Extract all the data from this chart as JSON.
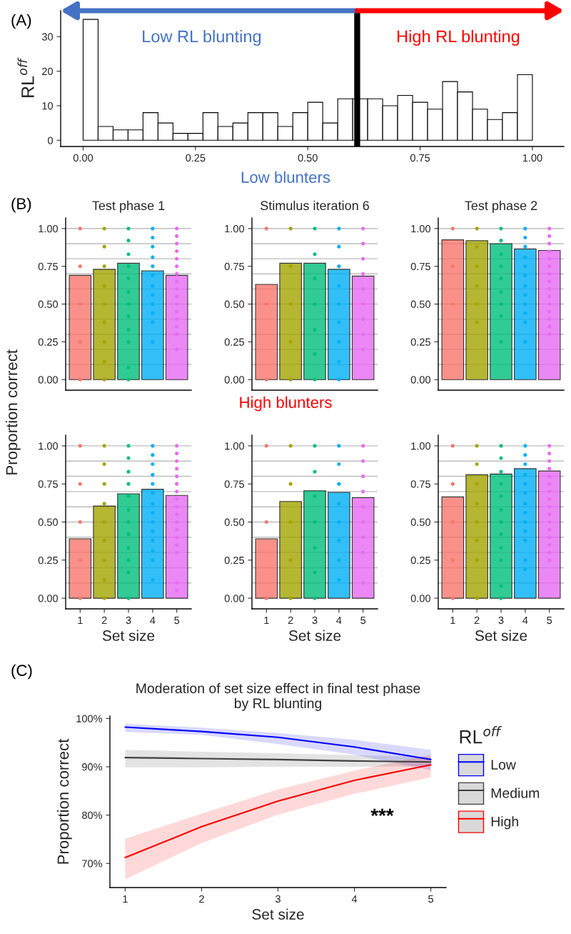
{
  "chart_data": [
    {
      "type": "histogram",
      "ylabel": "RL$^{off}$",
      "annotations": [
        "(A)",
        "Low RL blunting",
        "High RL blunting"
      ],
      "bins": [
        0,
        0.0333,
        0.0667,
        0.1,
        0.1333,
        0.1667,
        0.2,
        0.2333,
        0.2667,
        0.3,
        0.3333,
        0.3667,
        0.4,
        0.4333,
        0.4667,
        0.5,
        0.5333,
        0.5667,
        0.6,
        0.6333,
        0.6667,
        0.7,
        0.7333,
        0.7667,
        0.8,
        0.8333,
        0.8667,
        0.9,
        0.9333,
        0.9667,
        1
      ],
      "values": [
        35,
        4,
        3,
        3,
        8,
        5,
        2,
        2,
        8,
        4,
        5,
        8,
        8,
        4,
        8,
        11,
        5,
        12,
        12,
        12,
        10,
        13,
        11,
        9,
        17,
        14,
        9,
        6,
        8,
        19
      ],
      "color": "#ffffff",
      "xlim": [
        -0.05,
        1.07
      ],
      "xticks": [
        {
          "value": 0,
          "label": "0.00"
        },
        {
          "value": 0.25,
          "label": "0.25"
        },
        {
          "value": 0.5,
          "label": "0.50"
        },
        {
          "value": 0.75,
          "label": "0.75"
        },
        {
          "value": 1,
          "label": "1.00"
        }
      ],
      "ylim": [
        -1.8,
        37.5
      ],
      "yticks": [
        0,
        10,
        20,
        30
      ],
      "ref_lines": [
        {
          "axis": "x",
          "value": 0.61,
          "color": "#000000"
        }
      ]
    },
    {
      "type": "bar",
      "title": "Test phase 1",
      "ylabel": "Proportion correct",
      "annotations": [
        "(B)"
      ],
      "tick_labels": "y",
      "marker": "circle",
      "categories": [
        "1",
        "2",
        "3",
        "4",
        "5"
      ],
      "values": [
        0.69,
        0.73,
        0.77,
        0.72,
        0.69
      ],
      "colors": [
        "#F8766D",
        "#A3A500",
        "#00BF7D",
        "#00B0F6",
        "#E76BF3"
      ],
      "ylim": [
        -0.07,
        1.07
      ],
      "yticks": [
        {
          "value": 0,
          "label": "0.00"
        },
        {
          "value": 0.25,
          "label": "0.25"
        },
        {
          "value": 0.5,
          "label": "0.50"
        },
        {
          "value": 0.75,
          "label": "0.75"
        },
        {
          "value": 1,
          "label": "1.00"
        }
      ],
      "ref_lines": [
        {
          "axis": "y",
          "value": 0.1,
          "color": "#BEBEBE"
        },
        {
          "axis": "y",
          "value": 0.2,
          "color": "#BEBEBE"
        },
        {
          "axis": "y",
          "value": 0.3,
          "color": "#BEBEBE"
        },
        {
          "axis": "y",
          "value": 0.4,
          "color": "#BEBEBE"
        },
        {
          "axis": "y",
          "value": 0.5,
          "color": "#BEBEBE"
        },
        {
          "axis": "y",
          "value": 0.6,
          "color": "#BEBEBE"
        },
        {
          "axis": "y",
          "value": 0.7,
          "color": "#BEBEBE"
        },
        {
          "axis": "y",
          "value": 0.8,
          "color": "#BEBEBE"
        },
        {
          "axis": "y",
          "value": 0.9,
          "color": "#BEBEBE"
        },
        {
          "axis": "y",
          "value": 1,
          "color": "#BEBEBE"
        }
      ],
      "series": [
        {
          "type": "scatter",
          "color": "#F8766D",
          "x": [
            "1",
            "1",
            "1",
            "1",
            "1"
          ],
          "values": [
            1,
            0.75,
            0.5,
            0.25,
            0
          ]
        },
        {
          "type": "scatter",
          "color": "#A3A500",
          "x": [
            "2",
            "2",
            "2",
            "2",
            "2",
            "2",
            "2",
            "2",
            "2"
          ],
          "values": [
            1,
            0.88,
            0.75,
            0.62,
            0.5,
            0.38,
            0.25,
            0.12,
            0
          ]
        },
        {
          "type": "scatter",
          "color": "#00BF7D",
          "x": [
            "3",
            "3",
            "3",
            "3",
            "3",
            "3",
            "3",
            "3",
            "3",
            "3",
            "3",
            "3"
          ],
          "values": [
            1,
            0.92,
            0.83,
            0.75,
            0.67,
            0.58,
            0.5,
            0.42,
            0.33,
            0.25,
            0.08,
            0
          ]
        },
        {
          "type": "scatter",
          "color": "#00B0F6",
          "x": [
            "4",
            "4",
            "4",
            "4",
            "4",
            "4",
            "4",
            "4",
            "4",
            "4",
            "4",
            "4"
          ],
          "values": [
            1,
            0.94,
            0.88,
            0.81,
            0.75,
            0.69,
            0.62,
            0.56,
            0.5,
            0.44,
            0.38,
            0.25
          ]
        },
        {
          "type": "scatter",
          "color": "#E76BF3",
          "x": [
            "5",
            "5",
            "5",
            "5",
            "5",
            "5",
            "5",
            "5",
            "5",
            "5",
            "5",
            "5",
            "5",
            "5",
            "5",
            "5"
          ],
          "values": [
            1,
            0.95,
            0.9,
            0.85,
            0.8,
            0.75,
            0.7,
            0.65,
            0.6,
            0.55,
            0.5,
            0.45,
            0.4,
            0.35,
            0.3,
            0.2
          ]
        }
      ]
    },
    {
      "type": "bar",
      "title": "Stimulus iteration 6",
      "annotations": [
        "Low blunters"
      ],
      "tick_labels": "y",
      "marker": "circle",
      "categories": [
        "1",
        "2",
        "3",
        "4",
        "5"
      ],
      "values": [
        0.63,
        0.77,
        0.77,
        0.73,
        0.685
      ],
      "colors": [
        "#F8766D",
        "#A3A500",
        "#00BF7D",
        "#00B0F6",
        "#E76BF3"
      ],
      "ylim": [
        -0.07,
        1.07
      ],
      "yticks": [
        {
          "value": 0,
          "label": "0.00"
        },
        {
          "value": 0.25,
          "label": "0.25"
        },
        {
          "value": 0.5,
          "label": "0.50"
        },
        {
          "value": 0.75,
          "label": "0.75"
        },
        {
          "value": 1,
          "label": "1.00"
        }
      ],
      "ref_lines": [
        {
          "axis": "y",
          "value": 0.1,
          "color": "#BEBEBE"
        },
        {
          "axis": "y",
          "value": 0.2,
          "color": "#BEBEBE"
        },
        {
          "axis": "y",
          "value": 0.3,
          "color": "#BEBEBE"
        },
        {
          "axis": "y",
          "value": 0.4,
          "color": "#BEBEBE"
        },
        {
          "axis": "y",
          "value": 0.5,
          "color": "#BEBEBE"
        },
        {
          "axis": "y",
          "value": 0.6,
          "color": "#BEBEBE"
        },
        {
          "axis": "y",
          "value": 0.7,
          "color": "#BEBEBE"
        },
        {
          "axis": "y",
          "value": 0.8,
          "color": "#BEBEBE"
        },
        {
          "axis": "y",
          "value": 0.9,
          "color": "#BEBEBE"
        },
        {
          "axis": "y",
          "value": 1,
          "color": "#BEBEBE"
        }
      ],
      "series": [
        {
          "type": "scatter",
          "color": "#F8766D",
          "x": [
            "1",
            "1",
            "1"
          ],
          "values": [
            1,
            0.5,
            0
          ]
        },
        {
          "type": "scatter",
          "color": "#A3A500",
          "x": [
            "2",
            "2",
            "2",
            "2",
            "2"
          ],
          "values": [
            1,
            0.75,
            0.5,
            0.25,
            0
          ]
        },
        {
          "type": "scatter",
          "color": "#00BF7D",
          "x": [
            "3",
            "3",
            "3",
            "3",
            "3",
            "3",
            "3"
          ],
          "values": [
            1,
            0.83,
            0.67,
            0.5,
            0.33,
            0.17,
            0
          ]
        },
        {
          "type": "scatter",
          "color": "#00B0F6",
          "x": [
            "4",
            "4",
            "4",
            "4",
            "4",
            "4",
            "4",
            "4",
            "4"
          ],
          "values": [
            1,
            0.88,
            0.75,
            0.62,
            0.5,
            0.38,
            0.25,
            0.12,
            0
          ]
        },
        {
          "type": "scatter",
          "color": "#E76BF3",
          "x": [
            "5",
            "5",
            "5",
            "5",
            "5",
            "5",
            "5",
            "5",
            "5"
          ],
          "values": [
            1,
            0.9,
            0.8,
            0.7,
            0.6,
            0.5,
            0.4,
            0.3,
            0.2
          ]
        }
      ]
    },
    {
      "type": "bar",
      "title": "Test phase 2",
      "tick_labels": "y",
      "marker": "circle",
      "categories": [
        "1",
        "2",
        "3",
        "4",
        "5"
      ],
      "values": [
        0.925,
        0.92,
        0.9,
        0.865,
        0.855
      ],
      "colors": [
        "#F8766D",
        "#A3A500",
        "#00BF7D",
        "#00B0F6",
        "#E76BF3"
      ],
      "ylim": [
        -0.07,
        1.07
      ],
      "yticks": [
        {
          "value": 0,
          "label": "0.00"
        },
        {
          "value": 0.25,
          "label": "0.25"
        },
        {
          "value": 0.5,
          "label": "0.50"
        },
        {
          "value": 0.75,
          "label": "0.75"
        },
        {
          "value": 1,
          "label": "1.00"
        }
      ],
      "ref_lines": [
        {
          "axis": "y",
          "value": 0.1,
          "color": "#BEBEBE"
        },
        {
          "axis": "y",
          "value": 0.2,
          "color": "#BEBEBE"
        },
        {
          "axis": "y",
          "value": 0.3,
          "color": "#BEBEBE"
        },
        {
          "axis": "y",
          "value": 0.4,
          "color": "#BEBEBE"
        },
        {
          "axis": "y",
          "value": 0.5,
          "color": "#BEBEBE"
        },
        {
          "axis": "y",
          "value": 0.6,
          "color": "#BEBEBE"
        },
        {
          "axis": "y",
          "value": 0.7,
          "color": "#BEBEBE"
        },
        {
          "axis": "y",
          "value": 0.8,
          "color": "#BEBEBE"
        },
        {
          "axis": "y",
          "value": 0.9,
          "color": "#BEBEBE"
        },
        {
          "axis": "y",
          "value": 1,
          "color": "#BEBEBE"
        }
      ],
      "series": [
        {
          "type": "scatter",
          "color": "#F8766D",
          "x": [
            "1",
            "1",
            "1"
          ],
          "values": [
            1,
            0.75,
            0.5
          ]
        },
        {
          "type": "scatter",
          "color": "#A3A500",
          "x": [
            "2",
            "2",
            "2",
            "2",
            "2",
            "2"
          ],
          "values": [
            1,
            0.88,
            0.75,
            0.62,
            0.5,
            0.38
          ]
        },
        {
          "type": "scatter",
          "color": "#00BF7D",
          "x": [
            "3",
            "3",
            "3",
            "3",
            "3",
            "3",
            "3",
            "3",
            "3"
          ],
          "values": [
            1,
            0.92,
            0.83,
            0.75,
            0.67,
            0.58,
            0.5,
            0.42,
            0.25
          ]
        },
        {
          "type": "scatter",
          "color": "#00B0F6",
          "x": [
            "4",
            "4",
            "4",
            "4",
            "4",
            "4",
            "4",
            "4",
            "4",
            "4",
            "4",
            "4"
          ],
          "values": [
            1,
            0.94,
            0.88,
            0.81,
            0.75,
            0.69,
            0.62,
            0.56,
            0.5,
            0.44,
            0.38,
            0.25
          ]
        },
        {
          "type": "scatter",
          "color": "#E76BF3",
          "x": [
            "5",
            "5",
            "5",
            "5",
            "5",
            "5",
            "5",
            "5",
            "5",
            "5",
            "5",
            "5",
            "5",
            "5",
            "5"
          ],
          "values": [
            1,
            0.95,
            0.9,
            0.85,
            0.8,
            0.75,
            0.7,
            0.65,
            0.6,
            0.55,
            0.5,
            0.45,
            0.4,
            0.35,
            0.3
          ]
        }
      ]
    },
    {
      "type": "bar",
      "xlabel": "Set size",
      "marker": "circle",
      "categories": [
        "1",
        "2",
        "3",
        "4",
        "5"
      ],
      "values": [
        0.39,
        0.605,
        0.685,
        0.715,
        0.675
      ],
      "colors": [
        "#F8766D",
        "#A3A500",
        "#00BF7D",
        "#00B0F6",
        "#E76BF3"
      ],
      "ylim": [
        -0.07,
        1.07
      ],
      "yticks": [
        {
          "value": 0,
          "label": "0.00"
        },
        {
          "value": 0.25,
          "label": "0.25"
        },
        {
          "value": 0.5,
          "label": "0.50"
        },
        {
          "value": 0.75,
          "label": "0.75"
        },
        {
          "value": 1,
          "label": "1.00"
        }
      ],
      "ref_lines": [
        {
          "axis": "y",
          "value": 0.1,
          "color": "#BEBEBE"
        },
        {
          "axis": "y",
          "value": 0.2,
          "color": "#BEBEBE"
        },
        {
          "axis": "y",
          "value": 0.3,
          "color": "#BEBEBE"
        },
        {
          "axis": "y",
          "value": 0.4,
          "color": "#BEBEBE"
        },
        {
          "axis": "y",
          "value": 0.5,
          "color": "#BEBEBE"
        },
        {
          "axis": "y",
          "value": 0.6,
          "color": "#BEBEBE"
        },
        {
          "axis": "y",
          "value": 0.7,
          "color": "#BEBEBE"
        },
        {
          "axis": "y",
          "value": 0.8,
          "color": "#BEBEBE"
        },
        {
          "axis": "y",
          "value": 0.9,
          "color": "#BEBEBE"
        },
        {
          "axis": "y",
          "value": 1,
          "color": "#BEBEBE"
        }
      ],
      "series": [
        {
          "type": "scatter",
          "color": "#F8766D",
          "x": [
            "1",
            "1",
            "1",
            "1",
            "1"
          ],
          "values": [
            1,
            0.75,
            0.5,
            0.25,
            0
          ]
        },
        {
          "type": "scatter",
          "color": "#A3A500",
          "x": [
            "2",
            "2",
            "2",
            "2",
            "2",
            "2",
            "2",
            "2",
            "2"
          ],
          "values": [
            1,
            0.88,
            0.75,
            0.62,
            0.5,
            0.38,
            0.25,
            0.12,
            0
          ]
        },
        {
          "type": "scatter",
          "color": "#00BF7D",
          "x": [
            "3",
            "3",
            "3",
            "3",
            "3",
            "3",
            "3",
            "3",
            "3",
            "3",
            "3",
            "3"
          ],
          "values": [
            1,
            0.92,
            0.83,
            0.75,
            0.67,
            0.58,
            0.5,
            0.42,
            0.33,
            0.25,
            0.17,
            0
          ]
        },
        {
          "type": "scatter",
          "color": "#00B0F6",
          "x": [
            "4",
            "4",
            "4",
            "4",
            "4",
            "4",
            "4",
            "4",
            "4",
            "4",
            "4",
            "4",
            "4",
            "4"
          ],
          "values": [
            1,
            0.94,
            0.88,
            0.81,
            0.75,
            0.69,
            0.62,
            0.56,
            0.5,
            0.44,
            0.38,
            0.31,
            0.25,
            0.12
          ]
        },
        {
          "type": "scatter",
          "color": "#E76BF3",
          "x": [
            "5",
            "5",
            "5",
            "5",
            "5",
            "5",
            "5",
            "5",
            "5",
            "5",
            "5",
            "5",
            "5",
            "5",
            "5",
            "5",
            "5"
          ],
          "values": [
            1,
            0.95,
            0.9,
            0.85,
            0.8,
            0.75,
            0.7,
            0.65,
            0.6,
            0.55,
            0.5,
            0.45,
            0.4,
            0.35,
            0.3,
            0.1,
            0.05
          ]
        }
      ]
    },
    {
      "type": "bar",
      "xlabel": "Set size",
      "annotations": [
        "High blunters"
      ],
      "marker": "circle",
      "categories": [
        "1",
        "2",
        "3",
        "4",
        "5"
      ],
      "values": [
        0.39,
        0.635,
        0.705,
        0.695,
        0.66
      ],
      "colors": [
        "#F8766D",
        "#A3A500",
        "#00BF7D",
        "#00B0F6",
        "#E76BF3"
      ],
      "ylim": [
        -0.07,
        1.07
      ],
      "yticks": [
        {
          "value": 0,
          "label": "0.00"
        },
        {
          "value": 0.25,
          "label": "0.25"
        },
        {
          "value": 0.5,
          "label": "0.50"
        },
        {
          "value": 0.75,
          "label": "0.75"
        },
        {
          "value": 1,
          "label": "1.00"
        }
      ],
      "ref_lines": [
        {
          "axis": "y",
          "value": 0.1,
          "color": "#BEBEBE"
        },
        {
          "axis": "y",
          "value": 0.2,
          "color": "#BEBEBE"
        },
        {
          "axis": "y",
          "value": 0.3,
          "color": "#BEBEBE"
        },
        {
          "axis": "y",
          "value": 0.4,
          "color": "#BEBEBE"
        },
        {
          "axis": "y",
          "value": 0.5,
          "color": "#BEBEBE"
        },
        {
          "axis": "y",
          "value": 0.6,
          "color": "#BEBEBE"
        },
        {
          "axis": "y",
          "value": 0.7,
          "color": "#BEBEBE"
        },
        {
          "axis": "y",
          "value": 0.8,
          "color": "#BEBEBE"
        },
        {
          "axis": "y",
          "value": 0.9,
          "color": "#BEBEBE"
        },
        {
          "axis": "y",
          "value": 1,
          "color": "#BEBEBE"
        }
      ],
      "series": [
        {
          "type": "scatter",
          "color": "#F8766D",
          "x": [
            "1",
            "1",
            "1"
          ],
          "values": [
            1,
            0.5,
            0
          ]
        },
        {
          "type": "scatter",
          "color": "#A3A500",
          "x": [
            "2",
            "2",
            "2",
            "2",
            "2"
          ],
          "values": [
            1,
            0.75,
            0.5,
            0.25,
            0
          ]
        },
        {
          "type": "scatter",
          "color": "#00BF7D",
          "x": [
            "3",
            "3",
            "3",
            "3",
            "3",
            "3",
            "3"
          ],
          "values": [
            1,
            0.83,
            0.67,
            0.5,
            0.33,
            0.17,
            0
          ]
        },
        {
          "type": "scatter",
          "color": "#00B0F6",
          "x": [
            "4",
            "4",
            "4",
            "4",
            "4",
            "4",
            "4",
            "4"
          ],
          "values": [
            1,
            0.88,
            0.75,
            0.62,
            0.5,
            0.38,
            0.25,
            0.12
          ]
        },
        {
          "type": "scatter",
          "color": "#E76BF3",
          "x": [
            "5",
            "5",
            "5",
            "5",
            "5",
            "5",
            "5",
            "5",
            "5"
          ],
          "values": [
            1,
            0.9,
            0.8,
            0.7,
            0.6,
            0.5,
            0.4,
            0.3,
            0.1
          ]
        }
      ]
    },
    {
      "type": "bar",
      "xlabel": "Set size",
      "marker": "circle",
      "categories": [
        "1",
        "2",
        "3",
        "4",
        "5"
      ],
      "values": [
        0.665,
        0.81,
        0.815,
        0.85,
        0.835
      ],
      "colors": [
        "#F8766D",
        "#A3A500",
        "#00BF7D",
        "#00B0F6",
        "#E76BF3"
      ],
      "ylim": [
        -0.07,
        1.07
      ],
      "yticks": [
        {
          "value": 0,
          "label": "0.00"
        },
        {
          "value": 0.25,
          "label": "0.25"
        },
        {
          "value": 0.5,
          "label": "0.50"
        },
        {
          "value": 0.75,
          "label": "0.75"
        },
        {
          "value": 1,
          "label": "1.00"
        }
      ],
      "ref_lines": [
        {
          "axis": "y",
          "value": 0.1,
          "color": "#BEBEBE"
        },
        {
          "axis": "y",
          "value": 0.2,
          "color": "#BEBEBE"
        },
        {
          "axis": "y",
          "value": 0.3,
          "color": "#BEBEBE"
        },
        {
          "axis": "y",
          "value": 0.4,
          "color": "#BEBEBE"
        },
        {
          "axis": "y",
          "value": 0.5,
          "color": "#BEBEBE"
        },
        {
          "axis": "y",
          "value": 0.6,
          "color": "#BEBEBE"
        },
        {
          "axis": "y",
          "value": 0.7,
          "color": "#BEBEBE"
        },
        {
          "axis": "y",
          "value": 0.8,
          "color": "#BEBEBE"
        },
        {
          "axis": "y",
          "value": 0.9,
          "color": "#BEBEBE"
        },
        {
          "axis": "y",
          "value": 1,
          "color": "#BEBEBE"
        }
      ],
      "series": [
        {
          "type": "scatter",
          "color": "#F8766D",
          "x": [
            "1",
            "1",
            "1",
            "1",
            "1"
          ],
          "values": [
            1,
            0.75,
            0.5,
            0.25,
            0
          ]
        },
        {
          "type": "scatter",
          "color": "#A3A500",
          "x": [
            "2",
            "2",
            "2",
            "2",
            "2",
            "2",
            "2",
            "2"
          ],
          "values": [
            1,
            0.88,
            0.75,
            0.62,
            0.5,
            0.38,
            0.25,
            0
          ]
        },
        {
          "type": "scatter",
          "color": "#00BF7D",
          "x": [
            "3",
            "3",
            "3",
            "3",
            "3",
            "3",
            "3",
            "3",
            "3",
            "3",
            "3",
            "3"
          ],
          "values": [
            1,
            0.92,
            0.83,
            0.75,
            0.67,
            0.58,
            0.5,
            0.42,
            0.33,
            0.25,
            0.08,
            0
          ]
        },
        {
          "type": "scatter",
          "color": "#00B0F6",
          "x": [
            "4",
            "4",
            "4",
            "4",
            "4",
            "4",
            "4",
            "4",
            "4",
            "4",
            "4",
            "4",
            "4"
          ],
          "values": [
            1,
            0.94,
            0.88,
            0.81,
            0.75,
            0.69,
            0.62,
            0.56,
            0.5,
            0.44,
            0.38,
            0.25,
            0.19
          ]
        },
        {
          "type": "scatter",
          "color": "#E76BF3",
          "x": [
            "5",
            "5",
            "5",
            "5",
            "5",
            "5",
            "5",
            "5",
            "5",
            "5",
            "5",
            "5",
            "5",
            "5",
            "5",
            "5"
          ],
          "values": [
            1,
            0.95,
            0.9,
            0.85,
            0.8,
            0.75,
            0.7,
            0.65,
            0.6,
            0.55,
            0.5,
            0.45,
            0.4,
            0.35,
            0.3,
            0.25
          ]
        }
      ]
    },
    {
      "type": "line",
      "title": "Moderation of set size effect in final test phase\nby RL blunting",
      "xlabel": "Set size",
      "ylabel": "Proportion correct",
      "legend_title": "RL$^{off}$",
      "legend": "right",
      "annotations": [
        "(C)",
        "***"
      ],
      "x": [
        1,
        2,
        3,
        4,
        5
      ],
      "xlim": [
        0.8,
        5.2
      ],
      "xticks": [
        1,
        2,
        3,
        4,
        5
      ],
      "ylim": [
        65,
        100.5
      ],
      "yticks": [
        {
          "value": 70,
          "label": "70%"
        },
        {
          "value": 80,
          "label": "80%"
        },
        {
          "value": 90,
          "label": "90%"
        },
        {
          "value": 100,
          "label": "100%"
        }
      ],
      "series": [
        {
          "name": "Low",
          "color": "#0000FF",
          "values": [
            98.2,
            97.3,
            96.1,
            94.1,
            91.5
          ],
          "lower": [
            97.2,
            96.6,
            94.7,
            92.5,
            89.3
          ],
          "upper": [
            98.9,
            98.1,
            97.0,
            95.6,
            93.5
          ]
        },
        {
          "name": "Medium",
          "color": "#404040",
          "values": [
            91.9,
            91.7,
            91.5,
            91.2,
            91.0
          ],
          "lower": [
            89.9,
            89.9,
            90.0,
            90.0,
            90.1
          ],
          "upper": [
            93.5,
            93.1,
            92.8,
            92.4,
            92.0
          ]
        },
        {
          "name": "High",
          "color": "#FF0000",
          "values": [
            71.2,
            77.6,
            82.9,
            87.2,
            90.4
          ],
          "lower": [
            66.7,
            74.2,
            80.1,
            84.4,
            87.8
          ],
          "upper": [
            75.1,
            80.3,
            85.3,
            89.2,
            92.5
          ]
        }
      ]
    }
  ]
}
